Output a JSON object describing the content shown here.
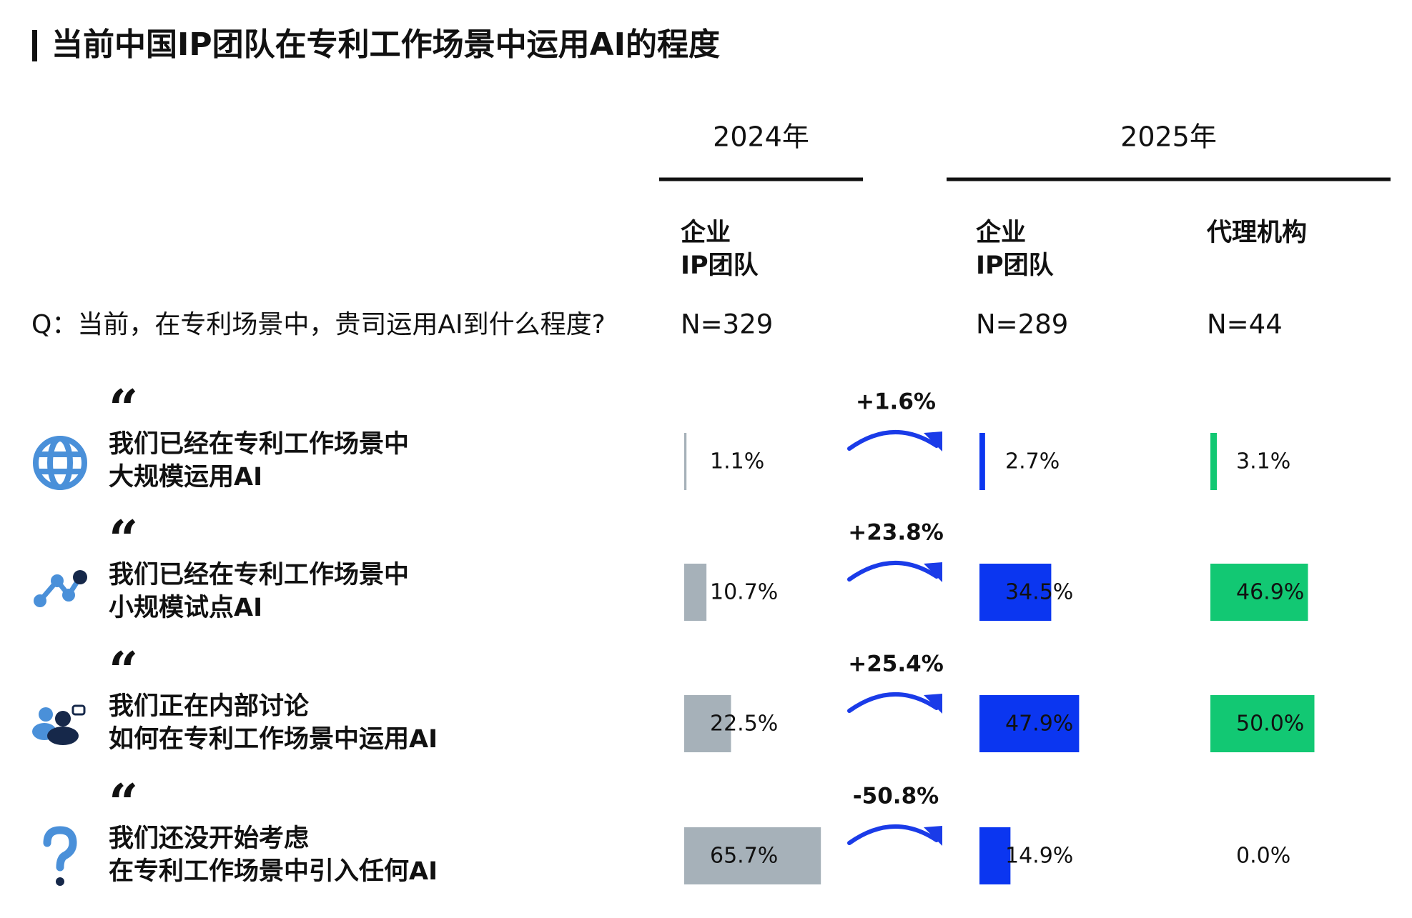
{
  "chart_data": {
    "type": "bar",
    "title": "当前中国IP团队在专利工作场景中运用AI的程度",
    "question": "Q：当前，在专利场景中，贵司运用AI到什么程度?",
    "groups": [
      "2024年",
      "2025年"
    ],
    "categories": [
      [
        "我们已经在专利工作场景中",
        "大规模运用AI"
      ],
      [
        "我们已经在专利工作场景中",
        "小规模试点AI"
      ],
      [
        "我们正在内部讨论",
        "如何在专利工作场景中运用AI"
      ],
      [
        "我们还没开始考虑",
        "在专利工作场景中引入任何AI"
      ]
    ],
    "series": [
      {
        "name": [
          "企业",
          "IP团队"
        ],
        "n": "N=329",
        "color": "#a6b1b9",
        "values": [
          1.1,
          10.7,
          22.5,
          65.7
        ],
        "value_labels": [
          "1.1%",
          "10.7%",
          "22.5%",
          "65.7%"
        ]
      },
      {
        "name": [
          "企业",
          "IP团队"
        ],
        "n": "N=289",
        "color": "#0b36f0",
        "values": [
          2.7,
          34.5,
          47.9,
          14.9
        ],
        "value_labels": [
          "2.7%",
          "34.5%",
          "47.9%",
          "14.9%"
        ]
      },
      {
        "name": [
          "代理机构"
        ],
        "n": "N=44",
        "color": "#12c873",
        "values": [
          3.1,
          46.9,
          50.0,
          0.0
        ],
        "value_labels": [
          "3.1%",
          "46.9%",
          "50.0%",
          "0.0%"
        ]
      }
    ],
    "changes": [
      1.6,
      23.8,
      25.4,
      -50.8
    ],
    "change_labels": [
      "+1.6%",
      "+23.8%",
      "+25.4%",
      "-50.8%"
    ],
    "change_color": "#1a3be8"
  }
}
